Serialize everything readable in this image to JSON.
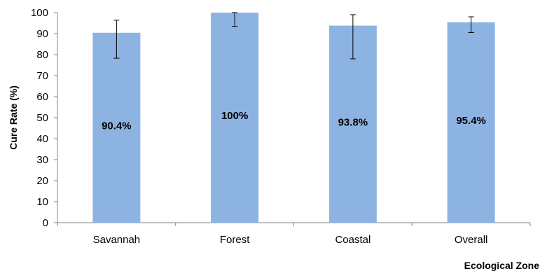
{
  "chart_data": {
    "type": "bar",
    "categories": [
      "Savannah",
      "Forest",
      "Coastal",
      "Overall"
    ],
    "values": [
      90.4,
      100,
      93.8,
      95.4
    ],
    "data_labels": [
      "90.4%",
      "100%",
      "93.8%",
      "95.4%"
    ],
    "error_bars": [
      {
        "low": 78.3,
        "high": 96.4
      },
      {
        "low": 93.5,
        "high": 100
      },
      {
        "low": 78.0,
        "high": 99.0
      },
      {
        "low": 90.5,
        "high": 98.0
      }
    ],
    "title": "",
    "xlabel": "Ecological Zone",
    "ylabel": "Cure Rate (%)",
    "ylim": [
      0,
      100
    ],
    "yticks": [
      0,
      10,
      20,
      30,
      40,
      50,
      60,
      70,
      80,
      90,
      100
    ],
    "grid": false,
    "legend": "none",
    "bar_color": "#8DB3E2"
  }
}
